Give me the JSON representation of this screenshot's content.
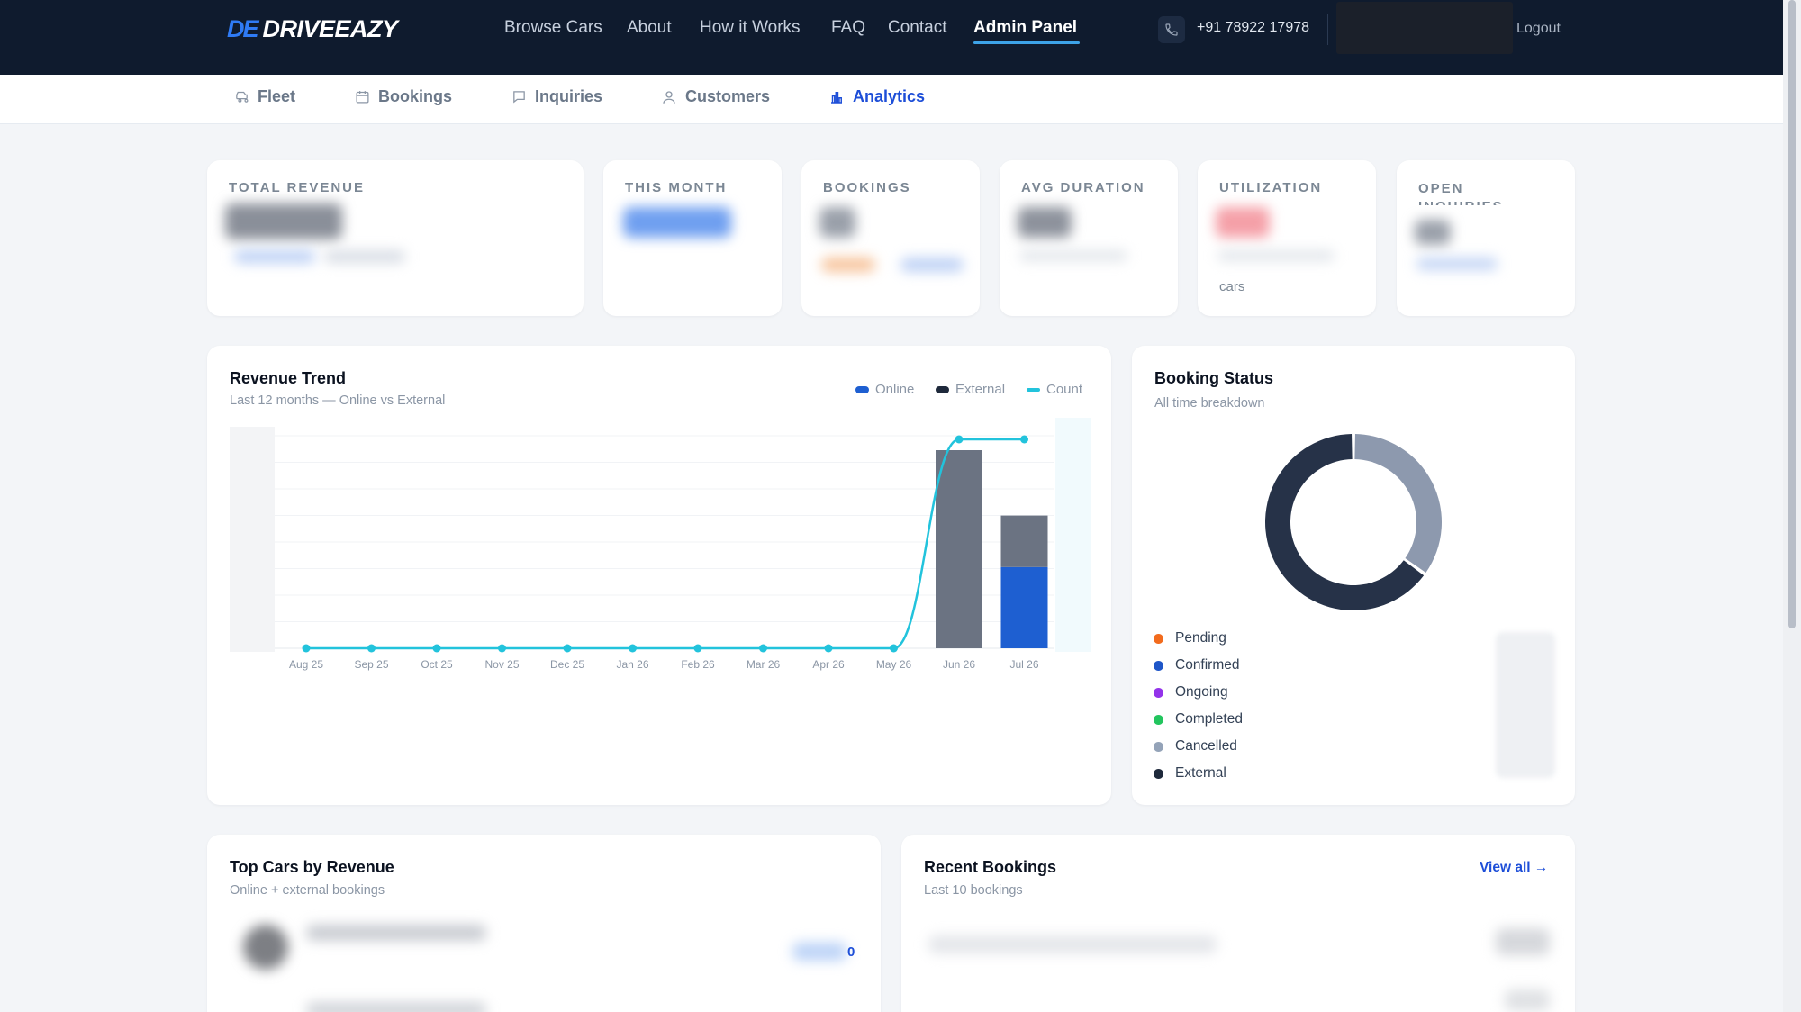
{
  "brand": {
    "mark": "DE",
    "name": "DRIVEEAZY"
  },
  "nav": {
    "links": [
      "Browse Cars",
      "About",
      "How it Works",
      "FAQ",
      "Contact",
      "Admin Panel"
    ],
    "active": "Admin Panel",
    "phone": "+91 78922 17978",
    "logout": "Logout"
  },
  "subnav": {
    "tabs": [
      "Fleet",
      "Bookings",
      "Inquiries",
      "Customers",
      "Analytics"
    ],
    "active": "Analytics"
  },
  "stats": {
    "total_revenue": {
      "label": "TOTAL REVENUE"
    },
    "this_month": {
      "label": "THIS MONTH"
    },
    "bookings": {
      "label": "BOOKINGS"
    },
    "avg_duration": {
      "label": "AVG DURATION"
    },
    "utilization": {
      "label": "UTILIZATION",
      "foot": "cars"
    },
    "open_inquiries": {
      "label": "OPEN INQUIRIES"
    }
  },
  "revenue_trend": {
    "title": "Revenue Trend",
    "subtitle": "Last 12 months — Online vs External",
    "legend": [
      "Online",
      "External",
      "Count"
    ]
  },
  "booking_status": {
    "title": "Booking Status",
    "subtitle": "All time breakdown",
    "items": [
      {
        "label": "Pending",
        "color": "#f26b1d"
      },
      {
        "label": "Confirmed",
        "color": "#1e56c8"
      },
      {
        "label": "Ongoing",
        "color": "#9333ea"
      },
      {
        "label": "Completed",
        "color": "#22c55e"
      },
      {
        "label": "Cancelled",
        "color": "#94a3b8"
      },
      {
        "label": "External",
        "color": "#1e293b"
      }
    ]
  },
  "top_cars": {
    "title": "Top Cars by Revenue",
    "subtitle": "Online + external bookings",
    "value_suffix": "0"
  },
  "recent_bookings": {
    "title": "Recent Bookings",
    "subtitle": "Last 10 bookings",
    "view_all": "View all →"
  },
  "colors": {
    "nav_bg": "#0f1b2e",
    "accent": "#1d4ed8",
    "online": "#1e5fd1",
    "external": "#6b7382",
    "count": "#22c3dc",
    "donut_dark": "#263248",
    "donut_light": "#8d99ae"
  },
  "chart_data": [
    {
      "type": "bar",
      "title": "Revenue Trend",
      "subtitle": "Last 12 months — Online vs External",
      "categories": [
        "Aug 25",
        "Sep 25",
        "Oct 25",
        "Nov 25",
        "Dec 25",
        "Jan 26",
        "Feb 26",
        "Mar 26",
        "Apr 26",
        "May 26",
        "Jun 26",
        "Jul 26"
      ],
      "series": [
        {
          "name": "Online",
          "values": [
            0,
            0,
            0,
            0,
            0,
            0,
            0,
            0,
            0,
            0,
            0,
            0.41
          ]
        },
        {
          "name": "External",
          "values": [
            0,
            0,
            0,
            0,
            0,
            0,
            0,
            0,
            0,
            0,
            1.0,
            0.26
          ]
        },
        {
          "name": "Count",
          "type": "line",
          "values": [
            0,
            0,
            0,
            0,
            0,
            0,
            0,
            0,
            0,
            0,
            1,
            1
          ]
        }
      ],
      "value_scale": "relative (axis values hidden)",
      "grid": true,
      "legend": "top-right"
    },
    {
      "type": "pie",
      "style": "donut",
      "title": "Booking Status",
      "subtitle": "All time breakdown",
      "slices": [
        {
          "label": "External",
          "value": 65,
          "color": "#263248"
        },
        {
          "label": "Cancelled",
          "value": 35,
          "color": "#8d99ae"
        }
      ],
      "legend": "bottom-left"
    }
  ]
}
